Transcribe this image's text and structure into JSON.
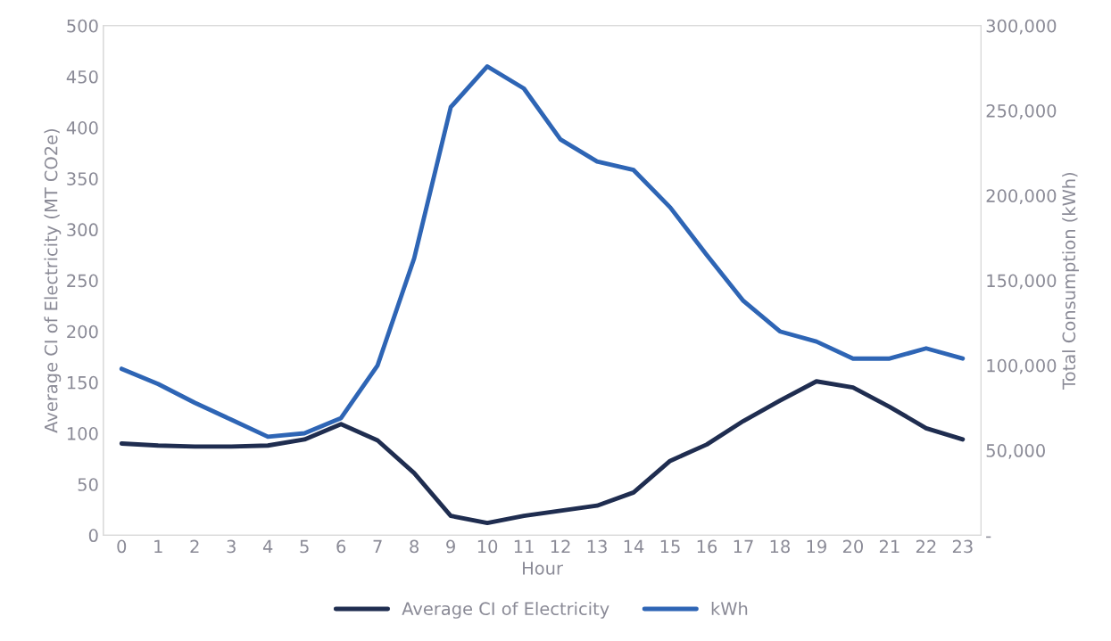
{
  "chart_data": {
    "type": "line",
    "xlabel": "Hour",
    "ylabel": "Average CI of Electricity (MT CO2e)",
    "y2label": "Total Consumption (kWh)",
    "categories": [
      "0",
      "1",
      "2",
      "3",
      "4",
      "5",
      "6",
      "7",
      "8",
      "9",
      "10",
      "11",
      "12",
      "13",
      "14",
      "15",
      "16",
      "17",
      "18",
      "19",
      "20",
      "21",
      "22",
      "23"
    ],
    "series": [
      {
        "name": "Average CI of Electricity",
        "color": "#1f2d50",
        "values": [
          90,
          88,
          87,
          87,
          88,
          94,
          109,
          93,
          61,
          19,
          12,
          19,
          24,
          29,
          42,
          73,
          89,
          112,
          132,
          151,
          145,
          126,
          105,
          94
        ]
      },
      {
        "name": "kWh",
        "color": "#2e65b5",
        "axis": "y2",
        "values": [
          98000,
          89000,
          78000,
          68000,
          58000,
          60000,
          69000,
          100000,
          163000,
          252000,
          276000,
          263000,
          233000,
          220000,
          215000,
          193000,
          165000,
          138000,
          120000,
          114000,
          104000,
          104000,
          110000,
          104000
        ]
      }
    ],
    "ylim": [
      0,
      500
    ],
    "yticks": [
      0,
      50,
      100,
      150,
      200,
      250,
      300,
      350,
      400,
      450,
      500
    ],
    "y2lim": [
      0,
      300000
    ],
    "y2ticks": [
      {
        "value": 0,
        "label": "-"
      },
      {
        "value": 50000,
        "label": "50,000"
      },
      {
        "value": 100000,
        "label": "100,000"
      },
      {
        "value": 150000,
        "label": "150,000"
      },
      {
        "value": 200000,
        "label": "200,000"
      },
      {
        "value": 250000,
        "label": "250,000"
      },
      {
        "value": 300000,
        "label": "300,000"
      }
    ],
    "grid": false,
    "legend": "bottom",
    "marker": "none",
    "line_style": "solid"
  }
}
